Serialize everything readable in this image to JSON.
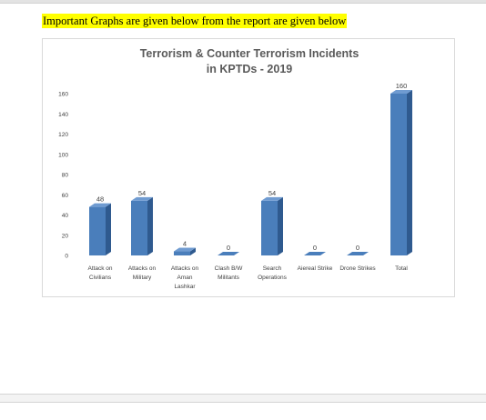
{
  "intro_text": "Important Graphs are given below from the report are given below",
  "colors": {
    "highlight": "#ffff00",
    "bar_front": "#4a7ebb",
    "bar_side": "#2f5a8f",
    "bar_top": "#6f9bd1"
  },
  "chart_data": {
    "type": "bar",
    "title_lines": [
      "Terrorism & Counter Terrorism Incidents",
      "in KPTDs - 2019"
    ],
    "categories": [
      [
        "Attack on",
        "Civilians"
      ],
      [
        "Attacks on",
        "Military"
      ],
      [
        "Attacks on",
        "Aman",
        "Lashkar"
      ],
      [
        "Clash B/W",
        "Militants"
      ],
      [
        "Search",
        "Operations"
      ],
      [
        "Aiereal Strike"
      ],
      [
        "Drone Strikes"
      ],
      [
        "Total"
      ]
    ],
    "values": [
      48,
      54,
      4,
      0,
      54,
      0,
      0,
      160
    ],
    "y_ticks": [
      0,
      20,
      40,
      60,
      80,
      100,
      120,
      140,
      160
    ],
    "ylim": [
      0,
      160
    ],
    "data_labels": true,
    "grid": false,
    "legend": "none",
    "style": "3d-column"
  }
}
